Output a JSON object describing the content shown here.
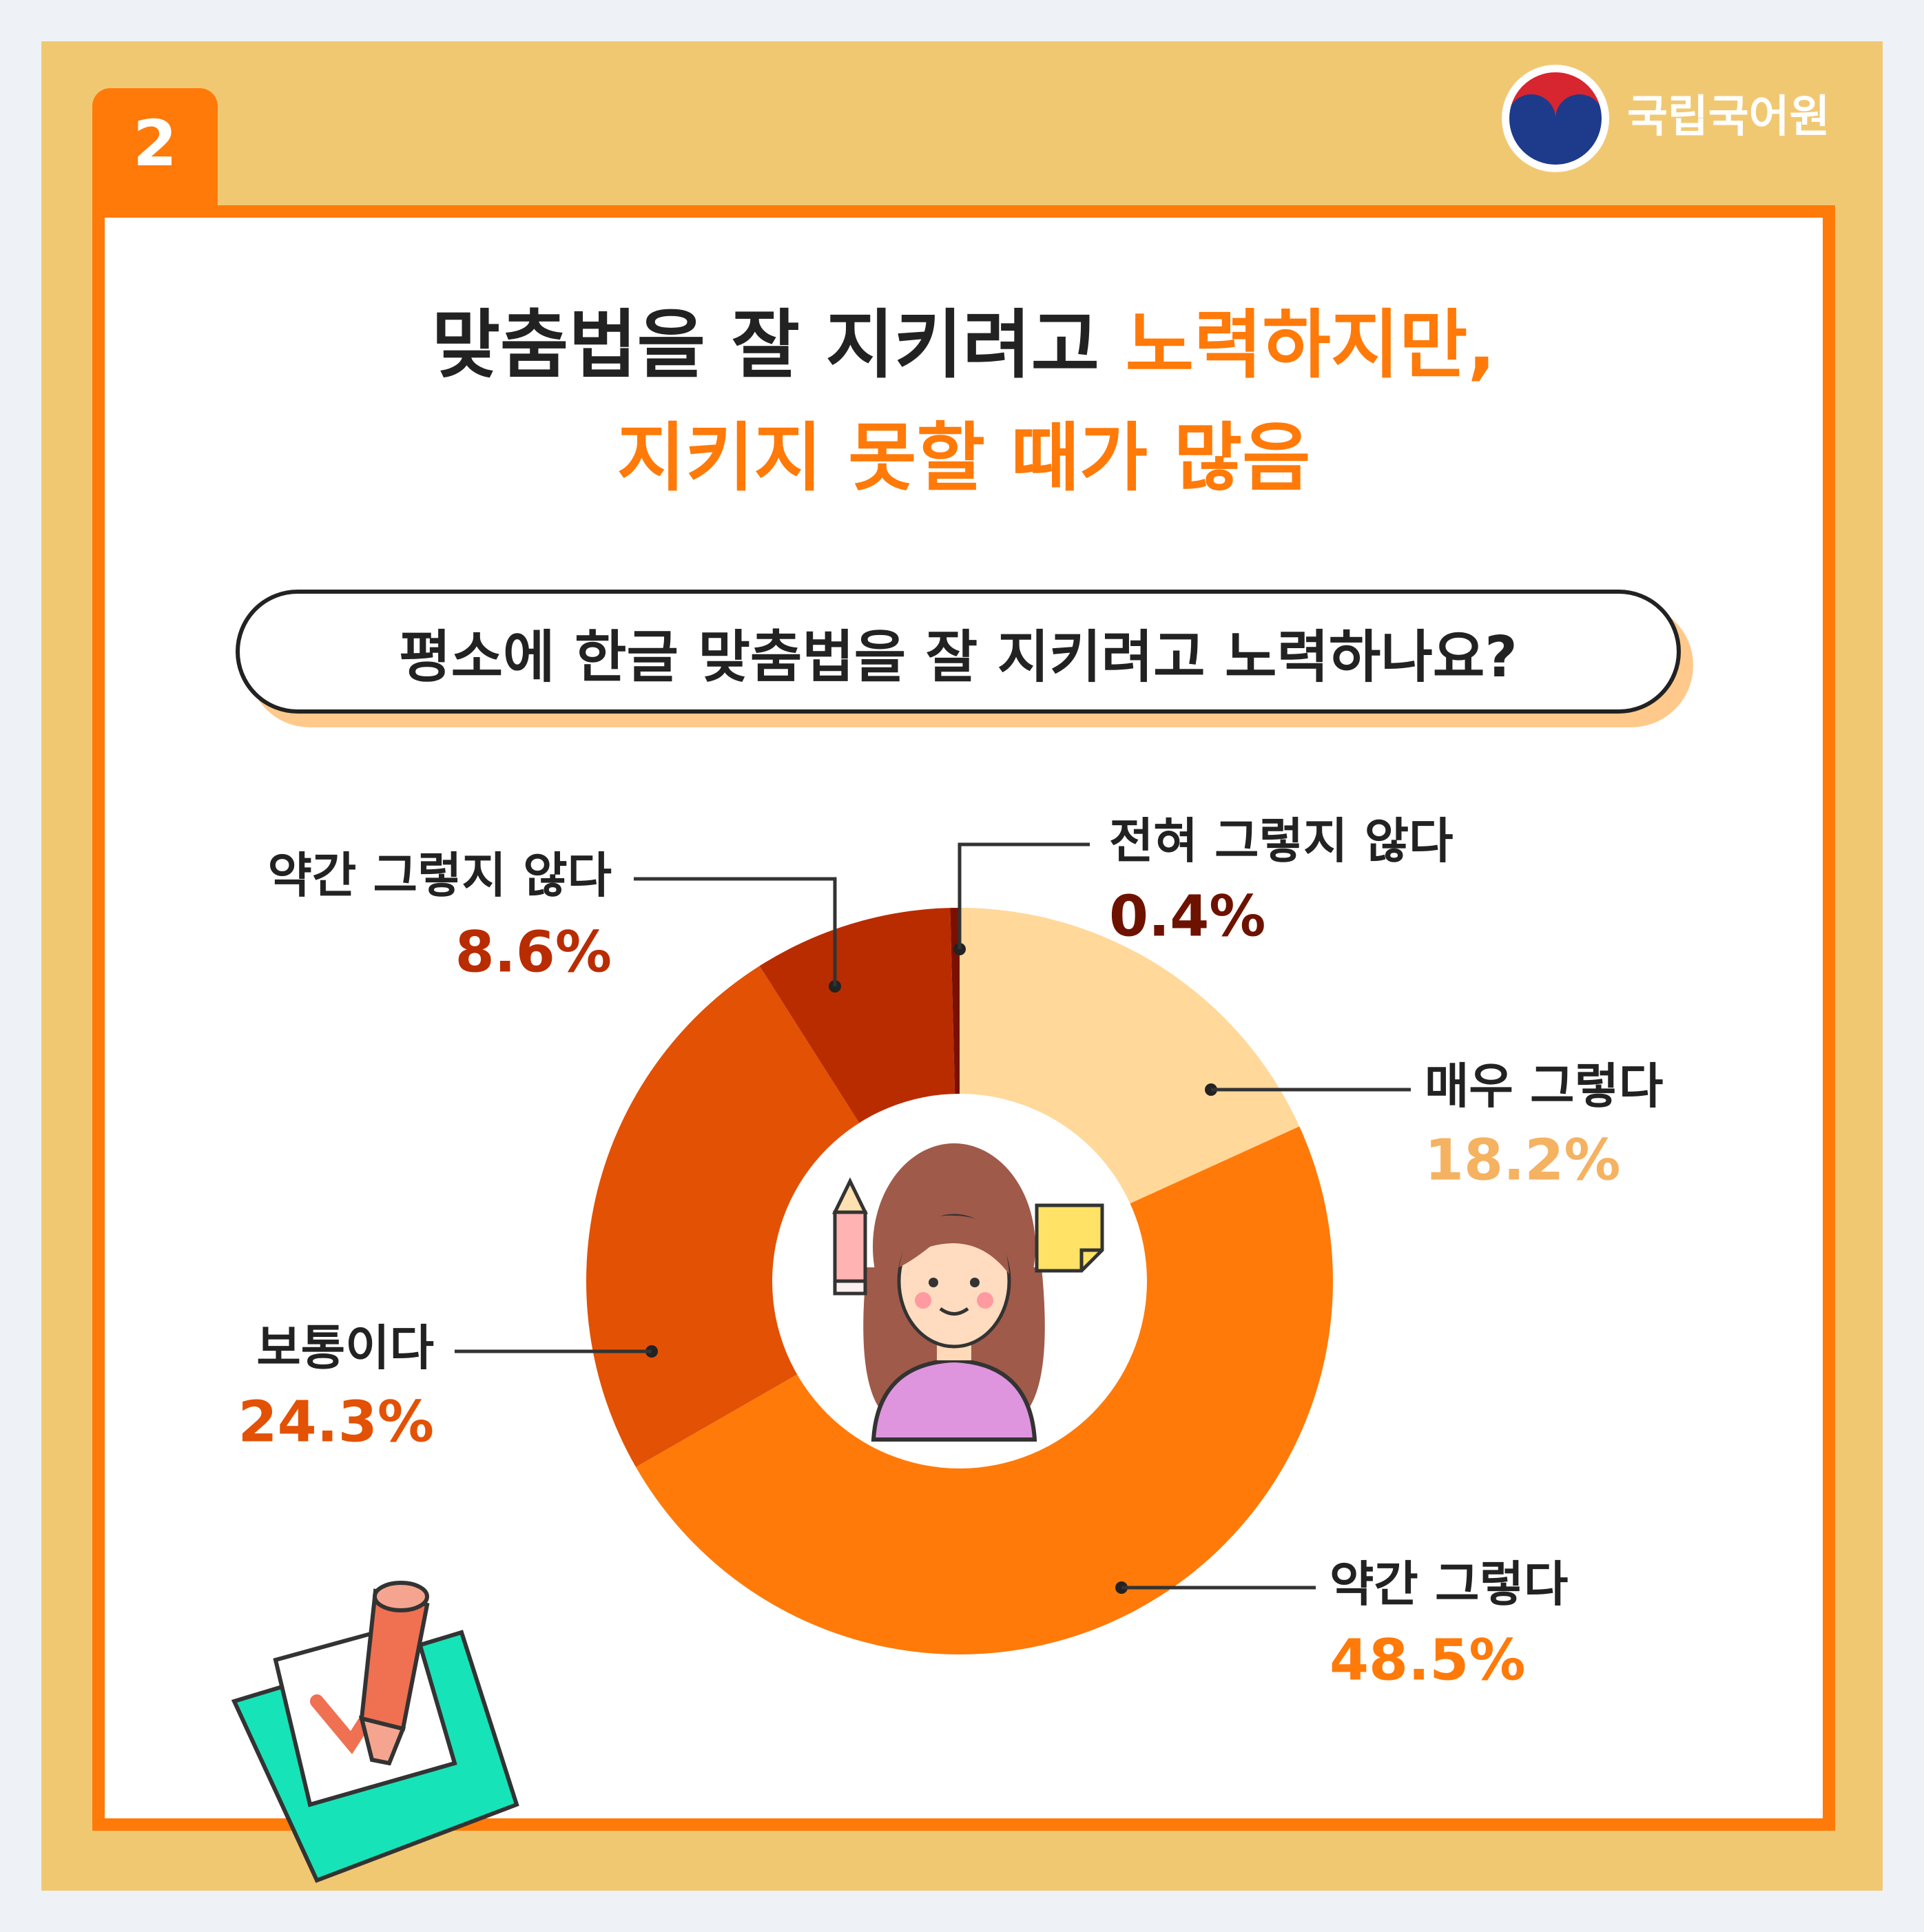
{
  "page": {
    "number": "2"
  },
  "org": {
    "name": "국립국어원"
  },
  "headline": {
    "line1_dark": "맞춤법을 잘 지키려고 ",
    "line1_orange": "노력하지만,",
    "line2": "지키지 못할 때가 많음"
  },
  "question": "평소에 한글 맞춤법을 잘 지키려고 노력하나요?",
  "chart_data": {
    "type": "pie",
    "donut": true,
    "slices": [
      {
        "label": "매우 그렇다",
        "value": 18.2,
        "value_text": "18.2%",
        "color": "#ffd89a",
        "label_color": "#f5b261"
      },
      {
        "label": "약간 그렇다",
        "value": 48.5,
        "value_text": "48.5%",
        "color": "#ff7a09",
        "label_color": "#ff7a09"
      },
      {
        "label": "보통이다",
        "value": 24.3,
        "value_text": "24.3%",
        "color": "#e35104",
        "label_color": "#e35104"
      },
      {
        "label": "약간 그렇지 않다",
        "value": 8.6,
        "value_text": "8.6%",
        "color": "#b92c00",
        "label_color": "#b92c00"
      },
      {
        "label": "전혀 그렇지 않다",
        "value": 0.4,
        "value_text": "0.4%",
        "color": "#7a1000",
        "label_color": "#6e1200"
      }
    ]
  }
}
